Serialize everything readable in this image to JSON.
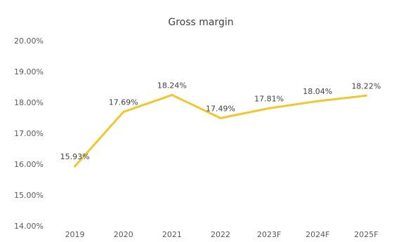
{
  "chart_data": {
    "type": "line",
    "title": "Gross margin",
    "xlabel": "",
    "ylabel": "",
    "categories": [
      "2019",
      "2020",
      "2021",
      "2022",
      "2023F",
      "2024F",
      "2025F"
    ],
    "series": [
      {
        "values": [
          15.93,
          17.69,
          18.24,
          17.49,
          17.81,
          18.04,
          18.22
        ],
        "labels": [
          "15.93%",
          "17.69%",
          "18.24%",
          "17.49%",
          "17.81%",
          "18.04%",
          "18.22%"
        ],
        "color": "#F2C62F"
      }
    ],
    "ylim": [
      14,
      20
    ],
    "yticks": [
      20,
      19,
      18,
      17,
      16,
      15,
      14
    ],
    "ytick_labels": [
      "20.00%",
      "19.00%",
      "18.00%",
      "17.00%",
      "16.00%",
      "15.00%",
      "14.00%"
    ],
    "grid": false,
    "legend": "none"
  }
}
